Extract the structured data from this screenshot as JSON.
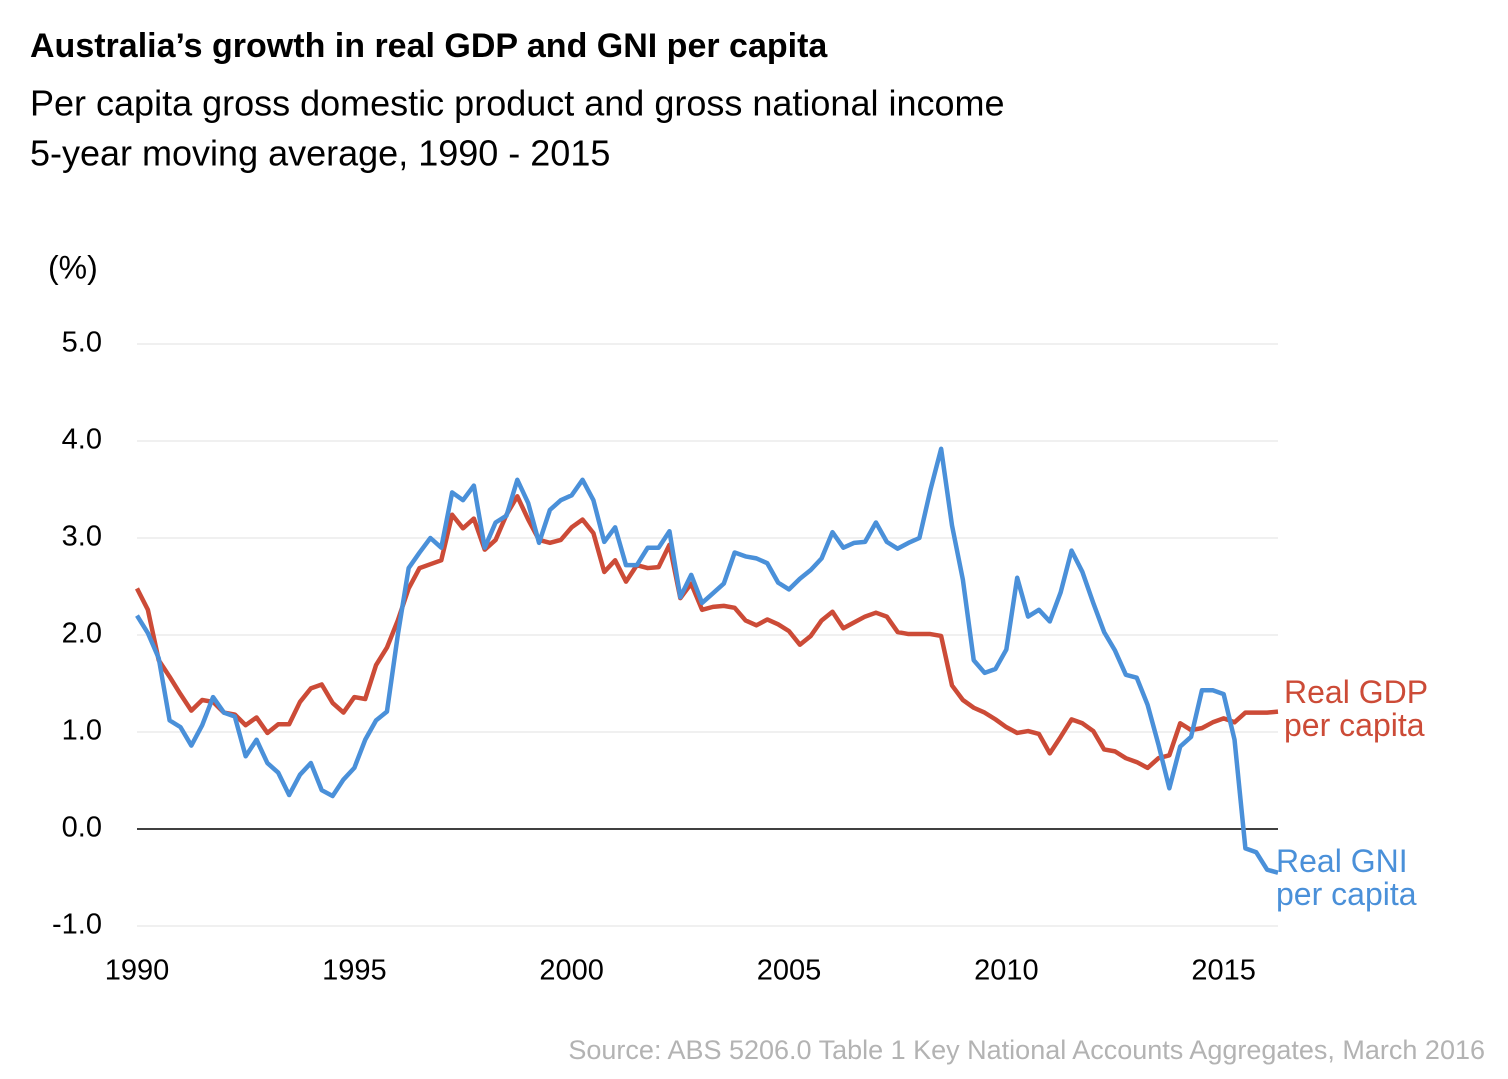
{
  "chart_data": {
    "type": "line",
    "title": "Australia’s growth in real GDP and GNI per capita",
    "subtitle": [
      "Per capita gross domestic product and gross national income",
      "5-year moving average, 1990 - 2015"
    ],
    "y_label": "(%)",
    "source": "Source: ABS 5206.0 Table 1 Key National Accounts Aggregates, March 2016",
    "x": [
      1990,
      1990.25,
      1990.5,
      1990.75,
      1991,
      1991.25,
      1991.5,
      1991.75,
      1992,
      1992.25,
      1992.5,
      1992.75,
      1993,
      1993.25,
      1993.5,
      1993.75,
      1994,
      1994.25,
      1994.5,
      1994.75,
      1995,
      1995.25,
      1995.5,
      1995.75,
      1996,
      1996.25,
      1996.5,
      1996.75,
      1997,
      1997.25,
      1997.5,
      1997.75,
      1998,
      1998.25,
      1998.5,
      1998.75,
      1999,
      1999.25,
      1999.5,
      1999.75,
      2000,
      2000.25,
      2000.5,
      2000.75,
      2001,
      2001.25,
      2001.5,
      2001.75,
      2002,
      2002.25,
      2002.5,
      2002.75,
      2003,
      2003.25,
      2003.5,
      2003.75,
      2004,
      2004.25,
      2004.5,
      2004.75,
      2005,
      2005.25,
      2005.5,
      2005.75,
      2006,
      2006.25,
      2006.5,
      2006.75,
      2007,
      2007.25,
      2007.5,
      2007.75,
      2008,
      2008.25,
      2008.5,
      2008.75,
      2009,
      2009.25,
      2009.5,
      2009.75,
      2010,
      2010.25,
      2010.5,
      2010.75,
      2011,
      2011.25,
      2011.5,
      2011.75,
      2012,
      2012.25,
      2012.5,
      2012.75,
      2013,
      2013.25,
      2013.5,
      2013.75,
      2014,
      2014.25,
      2014.5,
      2014.75,
      2015,
      2015.25,
      2015.5,
      2015.75,
      2016,
      2016.25
    ],
    "series": [
      {
        "name": "Real GDP per capita",
        "color": "#cc4b37",
        "values": [
          2.48,
          2.26,
          1.74,
          1.57,
          1.39,
          1.22,
          1.33,
          1.31,
          1.2,
          1.18,
          1.07,
          1.15,
          0.99,
          1.08,
          1.08,
          1.31,
          1.45,
          1.49,
          1.3,
          1.2,
          1.36,
          1.34,
          1.69,
          1.87,
          2.15,
          2.48,
          2.69,
          2.73,
          2.77,
          3.24,
          3.1,
          3.2,
          2.88,
          2.98,
          3.24,
          3.43,
          3.19,
          2.98,
          2.95,
          2.98,
          3.11,
          3.19,
          3.05,
          2.65,
          2.77,
          2.55,
          2.72,
          2.69,
          2.7,
          2.93,
          2.38,
          2.53,
          2.26,
          2.29,
          2.3,
          2.28,
          2.15,
          2.1,
          2.16,
          2.11,
          2.04,
          1.9,
          1.99,
          2.15,
          2.24,
          2.07,
          2.13,
          2.19,
          2.23,
          2.19,
          2.03,
          2.01,
          2.01,
          2.01,
          1.99,
          1.48,
          1.33,
          1.25,
          1.2,
          1.13,
          1.05,
          0.99,
          1.01,
          0.98,
          0.78,
          0.95,
          1.13,
          1.09,
          1.01,
          0.82,
          0.8,
          0.73,
          0.69,
          0.63,
          0.73,
          0.76,
          1.09,
          1.02,
          1.04,
          1.1,
          1.14,
          1.1,
          1.2,
          1.2,
          1.2,
          1.21
        ]
      },
      {
        "name": "Real GNI per capita",
        "color": "#4a90d9",
        "values": [
          2.2,
          2.02,
          1.76,
          1.12,
          1.05,
          0.86,
          1.07,
          1.36,
          1.2,
          1.16,
          0.75,
          0.92,
          0.68,
          0.58,
          0.35,
          0.56,
          0.68,
          0.4,
          0.34,
          0.51,
          0.63,
          0.92,
          1.12,
          1.21,
          2.0,
          2.69,
          2.85,
          3.0,
          2.9,
          3.47,
          3.39,
          3.54,
          2.9,
          3.16,
          3.23,
          3.6,
          3.36,
          2.95,
          3.29,
          3.39,
          3.44,
          3.6,
          3.39,
          2.96,
          3.11,
          2.72,
          2.72,
          2.9,
          2.9,
          3.07,
          2.39,
          2.62,
          2.33,
          2.43,
          2.53,
          2.85,
          2.81,
          2.79,
          2.74,
          2.54,
          2.47,
          2.58,
          2.67,
          2.79,
          3.06,
          2.9,
          2.95,
          2.96,
          3.16,
          2.96,
          2.89,
          2.95,
          3.0,
          3.49,
          3.92,
          3.13,
          2.57,
          1.74,
          1.61,
          1.65,
          1.85,
          2.59,
          2.19,
          2.26,
          2.14,
          2.44,
          2.87,
          2.65,
          2.33,
          2.03,
          1.84,
          1.59,
          1.56,
          1.28,
          0.87,
          0.42,
          0.85,
          0.95,
          1.43,
          1.43,
          1.39,
          0.92,
          -0.2,
          -0.24,
          -0.42,
          -0.45
        ]
      }
    ],
    "xlim": [
      1990,
      2016.25
    ],
    "xticks": [
      1990,
      1995,
      2000,
      2005,
      2010,
      2015
    ],
    "ylim": [
      -1,
      5
    ],
    "yticks": [
      {
        "value": -1,
        "label": "-1.0"
      },
      {
        "value": 0,
        "label": "0.0"
      },
      {
        "value": 1,
        "label": "1.0"
      },
      {
        "value": 2,
        "label": "2.0"
      },
      {
        "value": 3,
        "label": "3.0"
      },
      {
        "value": 4,
        "label": "4.0"
      },
      {
        "value": 5,
        "label": "5.0"
      }
    ],
    "grid": true
  }
}
